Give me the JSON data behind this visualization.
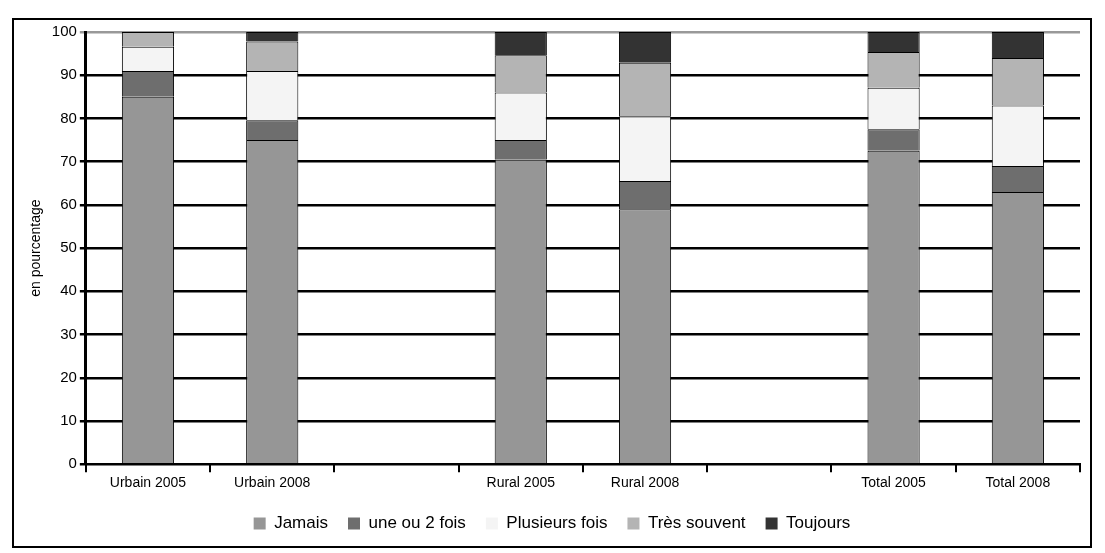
{
  "chart_data": {
    "type": "bar",
    "stacked": true,
    "ylabel": "en pourcentage",
    "categories": [
      "Urbain 2005",
      "Urbain 2008",
      null,
      "Rural 2005",
      "Rural 2008",
      null,
      "Total 2005",
      "Total 2008"
    ],
    "series": [
      {
        "name": "Jamais",
        "color": "#969696",
        "values": [
          85,
          75,
          null,
          70.5,
          59,
          null,
          72.5,
          63
        ]
      },
      {
        "name": "une ou 2 fois",
        "color": "#6e6e6e",
        "values": [
          6,
          4.6,
          null,
          4.5,
          6.5,
          null,
          5,
          6
        ]
      },
      {
        "name": "Plusieurs fois",
        "color": "#f4f4f4",
        "values": [
          5.6,
          11.4,
          null,
          11,
          15,
          null,
          9.6,
          14
        ]
      },
      {
        "name": "Très souvent",
        "color": "#b4b4b4",
        "values": [
          3.4,
          6.8,
          null,
          8.6,
          12.4,
          null,
          8.3,
          11
        ]
      },
      {
        "name": "Toujours",
        "color": "#333333",
        "values": [
          0,
          2.2,
          null,
          5.4,
          7.1,
          null,
          4.6,
          6
        ]
      }
    ],
    "ylim": [
      0,
      100
    ],
    "yticks": [
      0,
      10,
      20,
      30,
      40,
      50,
      60,
      70,
      80,
      90,
      100
    ],
    "grid": "y",
    "legend": "bottom"
  }
}
